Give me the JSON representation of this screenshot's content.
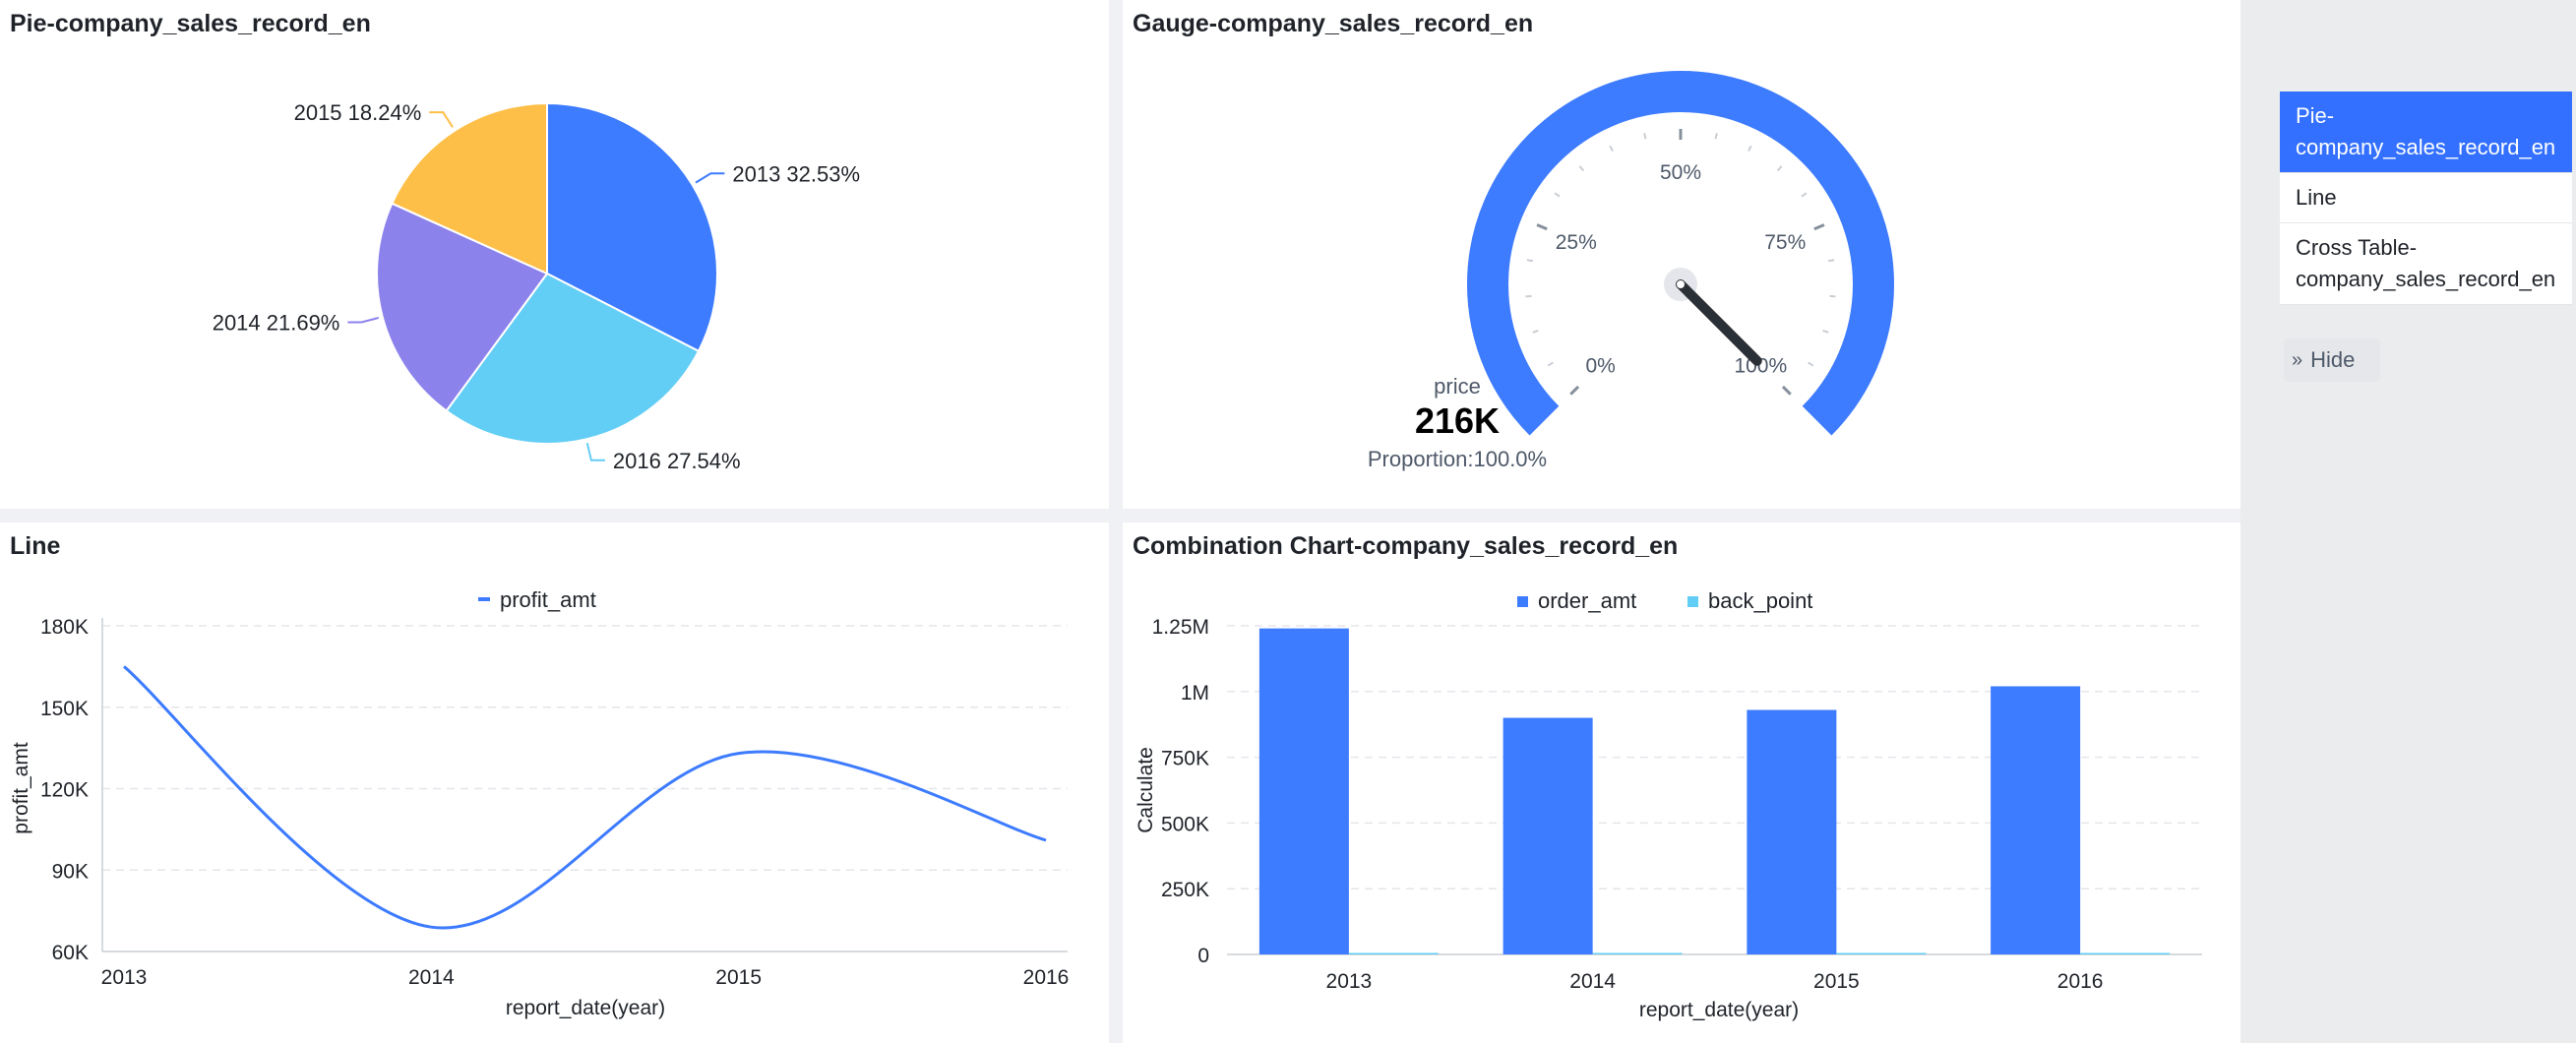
{
  "panels": {
    "pie_title": "Pie-company_sales_record_en",
    "gauge_title": "Gauge-company_sales_record_en",
    "line_title": "Line",
    "combo_title": "Combination Chart-company_sales_record_en"
  },
  "sidebar": {
    "items": [
      {
        "label": "Pie-company_sales_record_en",
        "active": true
      },
      {
        "label": "Line",
        "active": false
      },
      {
        "label": "Cross Table-company_sales_record_en",
        "active": false
      }
    ],
    "hide_label": "Hide",
    "hide_icon": "double-chevron-right-icon"
  },
  "gauge": {
    "label": "price",
    "value_text": "216K",
    "proportion_text": "Proportion:100.0%",
    "ticks": [
      "0%",
      "25%",
      "50%",
      "75%",
      "100%"
    ],
    "proportion": 1.0
  },
  "colors": {
    "blue": "#3d7bff",
    "cyan": "#63cef5",
    "purple": "#8c82ec",
    "yellow": "#fdbf47",
    "grid": "#e5e6eb",
    "axis_text": "#1f2329"
  },
  "chart_data": [
    {
      "type": "pie",
      "title": "Pie-company_sales_record_en",
      "slices": [
        {
          "label": "2013",
          "percent": 32.53,
          "text": "2013 32.53%",
          "color": "#3d7bff"
        },
        {
          "label": "2016",
          "percent": 27.54,
          "text": "2016 27.54%",
          "color": "#63cef5"
        },
        {
          "label": "2014",
          "percent": 21.69,
          "text": "2014 21.69%",
          "color": "#8c82ec"
        },
        {
          "label": "2015",
          "percent": 18.24,
          "text": "2015 18.24%",
          "color": "#fdbf47"
        }
      ]
    },
    {
      "type": "line",
      "title": "Line",
      "legend": [
        "profit_amt"
      ],
      "xlabel": "report_date(year)",
      "ylabel": "profit_amt",
      "categories": [
        "2013",
        "2014",
        "2015",
        "2016"
      ],
      "series": [
        {
          "name": "profit_amt",
          "values": [
            165000,
            69000,
            133000,
            101000
          ],
          "color": "#3d7bff"
        }
      ],
      "yticks": [
        "60K",
        "90K",
        "120K",
        "150K",
        "180K"
      ],
      "ylim": [
        60000,
        180000
      ],
      "grid": true
    },
    {
      "type": "bar",
      "title": "Combination Chart-company_sales_record_en",
      "legend": [
        "order_amt",
        "back_point"
      ],
      "xlabel": "report_date(year)",
      "ylabel": "Calculate",
      "categories": [
        "2013",
        "2014",
        "2015",
        "2016"
      ],
      "series": [
        {
          "name": "order_amt",
          "values": [
            1240000,
            900000,
            930000,
            1020000
          ],
          "color": "#3d7bff"
        },
        {
          "name": "back_point",
          "values": [
            4000,
            3000,
            3000,
            3000
          ],
          "color": "#63cef5"
        }
      ],
      "yticks": [
        "0",
        "250K",
        "500K",
        "750K",
        "1M",
        "1.25M"
      ],
      "ylim": [
        0,
        1250000
      ],
      "grid": true
    }
  ]
}
